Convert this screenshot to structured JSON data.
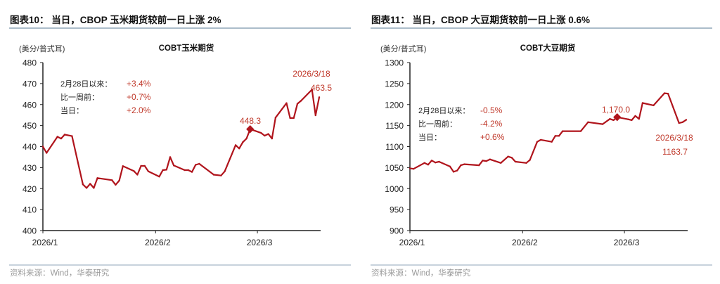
{
  "colors": {
    "line": "#b0141c",
    "annotation": "#c0392b",
    "rule": "#8fa6b8",
    "axis": "#222222"
  },
  "chart_data": [
    {
      "type": "line",
      "figure_title": "图表10： 当日，CBOP 玉米期货较前一日上涨 2%",
      "title": "COBT玉米期货",
      "ylabel": "(美分/普式耳)",
      "xlabel": "",
      "ylim": [
        400,
        480
      ],
      "yticks": [
        400,
        410,
        420,
        430,
        440,
        450,
        460,
        470,
        480
      ],
      "xlim": [
        "2026-01-01",
        "2026-03-18"
      ],
      "xticks": [
        {
          "date": "2026-01-01",
          "label": "2026/1"
        },
        {
          "date": "2026-02-01",
          "label": "2026/2"
        },
        {
          "date": "2026-03-01",
          "label": "2026/3"
        }
      ],
      "grid": false,
      "source": "资料来源：Wind，华泰研究",
      "stats": [
        {
          "label": "2月28日以来：",
          "value": "+3.4%"
        },
        {
          "label": "比一周前：",
          "value": "+0.7%"
        },
        {
          "label": "当日：",
          "value": "+2.0%"
        }
      ],
      "marker": {
        "date": "2026-02-27",
        "value": 448.3,
        "label": "448.3"
      },
      "end_label": {
        "date_label": "2026/3/18",
        "value_label": "463.5"
      },
      "series": [
        {
          "x": [
            "2026-01-01",
            "2026-01-02",
            "2026-01-05",
            "2026-01-06",
            "2026-01-07",
            "2026-01-09",
            "2026-01-12",
            "2026-01-13",
            "2026-01-14",
            "2026-01-15",
            "2026-01-16",
            "2026-01-20",
            "2026-01-21",
            "2026-01-22",
            "2026-01-23",
            "2026-01-26",
            "2026-01-27",
            "2026-01-28",
            "2026-01-29",
            "2026-01-30",
            "2026-02-02",
            "2026-02-03",
            "2026-02-04",
            "2026-02-05",
            "2026-02-06",
            "2026-02-09",
            "2026-02-10",
            "2026-02-11",
            "2026-02-12",
            "2026-02-13",
            "2026-02-17",
            "2026-02-19",
            "2026-02-20",
            "2026-02-23",
            "2026-02-24",
            "2026-02-25",
            "2026-02-26",
            "2026-02-27",
            "2026-03-02",
            "2026-03-03",
            "2026-03-04",
            "2026-03-05",
            "2026-03-06",
            "2026-03-09",
            "2026-03-10",
            "2026-03-11",
            "2026-03-12",
            "2026-03-13",
            "2026-03-16",
            "2026-03-17",
            "2026-03-18"
          ],
          "values": [
            440.0,
            437.0,
            444.7,
            443.8,
            445.7,
            445.0,
            422.0,
            420.3,
            422.3,
            420.3,
            425.0,
            424.0,
            421.8,
            423.8,
            430.7,
            428.4,
            426.6,
            430.8,
            430.8,
            428.2,
            425.7,
            428.8,
            429.0,
            435.0,
            431.0,
            428.8,
            428.8,
            427.9,
            431.3,
            431.8,
            426.6,
            426.2,
            428.2,
            440.7,
            439.1,
            442.1,
            443.8,
            448.3,
            446.5,
            445.2,
            446.0,
            443.8,
            453.8,
            460.7,
            453.6,
            453.6,
            460.4,
            461.8,
            467.1,
            454.9,
            463.5
          ]
        }
      ]
    },
    {
      "type": "line",
      "figure_title": "图表11： 当日，CBOP 大豆期货较前一日上涨 0.6%",
      "title": "COBT大豆期货",
      "ylabel": "(美分/普式耳)",
      "xlabel": "",
      "ylim": [
        900,
        1300
      ],
      "yticks": [
        900,
        950,
        1000,
        1050,
        1100,
        1150,
        1200,
        1250,
        1300
      ],
      "xlim": [
        "2026-01-01",
        "2026-03-18"
      ],
      "xticks": [
        {
          "date": "2026-01-01",
          "label": "2026/1"
        },
        {
          "date": "2026-02-01",
          "label": "2026/2"
        },
        {
          "date": "2026-03-01",
          "label": "2026/3"
        }
      ],
      "grid": false,
      "source": "资料来源：Wind，华泰研究",
      "stats": [
        {
          "label": "2月28日以来：",
          "value": "-0.5%"
        },
        {
          "label": "比一周前：",
          "value": "-4.2%"
        },
        {
          "label": "当日：",
          "value": "+0.6%"
        }
      ],
      "marker": {
        "date": "2026-02-27",
        "value": 1170.0,
        "label": "1,170.0"
      },
      "end_label": {
        "date_label": "2026/3/18",
        "value_label": "1163.7"
      },
      "series": [
        {
          "x": [
            "2026-01-01",
            "2026-01-02",
            "2026-01-05",
            "2026-01-06",
            "2026-01-07",
            "2026-01-08",
            "2026-01-09",
            "2026-01-12",
            "2026-01-13",
            "2026-01-14",
            "2026-01-15",
            "2026-01-16",
            "2026-01-20",
            "2026-01-21",
            "2026-01-22",
            "2026-01-23",
            "2026-01-26",
            "2026-01-28",
            "2026-01-29",
            "2026-01-30",
            "2026-02-02",
            "2026-02-03",
            "2026-02-05",
            "2026-02-06",
            "2026-02-09",
            "2026-02-10",
            "2026-02-11",
            "2026-02-12",
            "2026-02-17",
            "2026-02-19",
            "2026-02-23",
            "2026-02-25",
            "2026-02-26",
            "2026-02-27",
            "2026-03-02",
            "2026-03-03",
            "2026-03-04",
            "2026-03-05",
            "2026-03-06",
            "2026-03-09",
            "2026-03-12",
            "2026-03-13",
            "2026-03-16",
            "2026-03-17",
            "2026-03-18"
          ],
          "values": [
            1048.3,
            1047.0,
            1061.0,
            1057.0,
            1066.7,
            1062.0,
            1064.0,
            1052.7,
            1040.0,
            1043.0,
            1055.5,
            1058.0,
            1055.5,
            1066.7,
            1065.5,
            1069.5,
            1061.0,
            1076.2,
            1073.5,
            1064.0,
            1061.0,
            1068.0,
            1111.4,
            1116.0,
            1111.4,
            1125.5,
            1125.5,
            1136.6,
            1136.6,
            1158.0,
            1153.4,
            1165.8,
            1163.0,
            1170.0,
            1165.0,
            1163.0,
            1173.0,
            1166.0,
            1203.7,
            1198.0,
            1227.0,
            1226.0,
            1156.0,
            1158.0,
            1163.7
          ]
        }
      ]
    }
  ]
}
